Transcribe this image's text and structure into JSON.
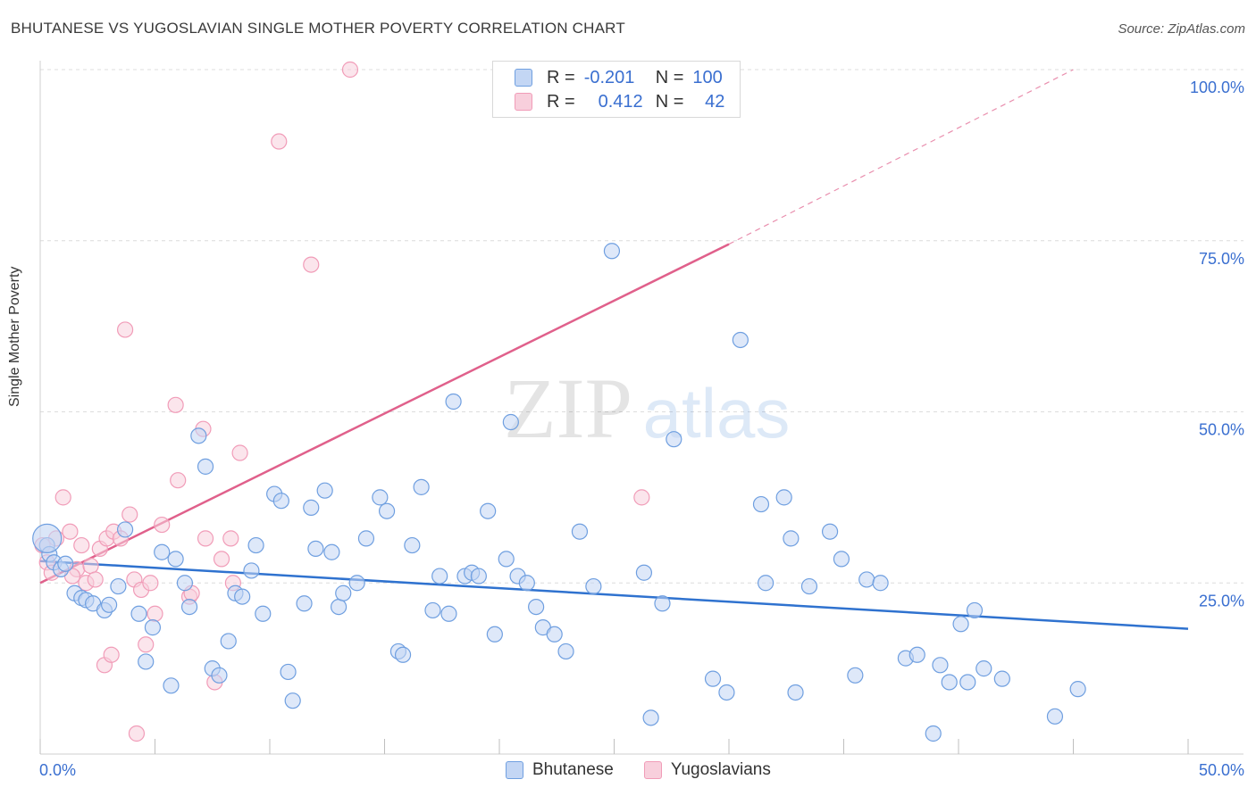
{
  "title": "BHUTANESE VS YUGOSLAVIAN SINGLE MOTHER POVERTY CORRELATION CHART",
  "source": "Source: ZipAtlas.com",
  "watermark": {
    "zip": "ZIP",
    "atlas": "atlas"
  },
  "legend": {
    "rows": [
      {
        "r_label": "R =",
        "r_value": "-0.201",
        "n_label": "N =",
        "n_value": "100"
      },
      {
        "r_label": "R =",
        "r_value": "0.412",
        "n_label": "N =",
        "n_value": "42"
      }
    ],
    "bottom": [
      "Bhutanese",
      "Yugoslavians"
    ]
  },
  "chart_data": {
    "type": "scatter",
    "title": "BHUTANESE VS YUGOSLAVIAN SINGLE MOTHER POVERTY CORRELATION CHART",
    "xlabel": "",
    "ylabel": "Single Mother Poverty",
    "xlim": [
      0,
      50
    ],
    "ylim": [
      0,
      100
    ],
    "x_tick_labels": [
      "0.0%",
      "50.0%"
    ],
    "y_tick_labels": [
      "25.0%",
      "50.0%",
      "75.0%",
      "100.0%"
    ],
    "y_ticks": [
      25,
      50,
      75,
      100
    ],
    "grid": true,
    "legend_placement": "top-center",
    "series": [
      {
        "name": "Bhutanese",
        "color": "#6f9fe0",
        "line_color": "#2f72cf",
        "trend": {
          "x": [
            0,
            50
          ],
          "y": [
            28.2,
            18.3
          ]
        },
        "points": [
          [
            0.3,
            30.5
          ],
          [
            0.4,
            29.2
          ],
          [
            0.6,
            28.0
          ],
          [
            0.9,
            27.0
          ],
          [
            1.1,
            27.8
          ],
          [
            1.5,
            23.5
          ],
          [
            1.8,
            22.8
          ],
          [
            2.0,
            22.5
          ],
          [
            2.3,
            22.0
          ],
          [
            2.8,
            21.0
          ],
          [
            3.0,
            21.8
          ],
          [
            3.4,
            24.5
          ],
          [
            3.7,
            32.8
          ],
          [
            4.3,
            20.5
          ],
          [
            4.6,
            13.5
          ],
          [
            4.9,
            18.5
          ],
          [
            5.3,
            29.5
          ],
          [
            5.7,
            10.0
          ],
          [
            5.9,
            28.5
          ],
          [
            6.3,
            25.0
          ],
          [
            6.5,
            21.5
          ],
          [
            6.9,
            46.5
          ],
          [
            7.2,
            42.0
          ],
          [
            7.5,
            12.5
          ],
          [
            7.8,
            11.5
          ],
          [
            8.2,
            16.5
          ],
          [
            8.5,
            23.5
          ],
          [
            8.8,
            23.0
          ],
          [
            9.2,
            26.8
          ],
          [
            9.4,
            30.5
          ],
          [
            9.7,
            20.5
          ],
          [
            10.2,
            38.0
          ],
          [
            10.5,
            37.0
          ],
          [
            10.8,
            12.0
          ],
          [
            11.0,
            7.8
          ],
          [
            11.5,
            22.0
          ],
          [
            11.8,
            36.0
          ],
          [
            12.0,
            30.0
          ],
          [
            12.4,
            38.5
          ],
          [
            12.7,
            29.5
          ],
          [
            13.0,
            21.5
          ],
          [
            13.2,
            23.5
          ],
          [
            13.8,
            25.0
          ],
          [
            14.2,
            31.5
          ],
          [
            14.8,
            37.5
          ],
          [
            15.1,
            35.5
          ],
          [
            15.6,
            15.0
          ],
          [
            15.8,
            14.5
          ],
          [
            16.2,
            30.5
          ],
          [
            16.6,
            39.0
          ],
          [
            17.1,
            21.0
          ],
          [
            17.4,
            26.0
          ],
          [
            17.8,
            20.5
          ],
          [
            18.0,
            51.5
          ],
          [
            18.5,
            26.0
          ],
          [
            18.8,
            26.5
          ],
          [
            19.1,
            26.0
          ],
          [
            19.5,
            35.5
          ],
          [
            19.8,
            17.5
          ],
          [
            20.3,
            28.5
          ],
          [
            20.5,
            48.5
          ],
          [
            20.8,
            26.0
          ],
          [
            21.2,
            25.0
          ],
          [
            21.6,
            21.5
          ],
          [
            21.9,
            18.5
          ],
          [
            22.4,
            17.5
          ],
          [
            22.9,
            15.0
          ],
          [
            23.5,
            32.5
          ],
          [
            24.1,
            24.5
          ],
          [
            24.9,
            73.5
          ],
          [
            26.3,
            26.5
          ],
          [
            26.6,
            5.3
          ],
          [
            27.1,
            22.0
          ],
          [
            27.6,
            46.0
          ],
          [
            29.3,
            11.0
          ],
          [
            29.9,
            9.0
          ],
          [
            30.5,
            60.5
          ],
          [
            31.4,
            36.5
          ],
          [
            31.6,
            25.0
          ],
          [
            32.4,
            37.5
          ],
          [
            32.7,
            31.5
          ],
          [
            32.9,
            9.0
          ],
          [
            33.5,
            24.5
          ],
          [
            34.4,
            32.5
          ],
          [
            34.9,
            28.5
          ],
          [
            35.5,
            11.5
          ],
          [
            36.0,
            25.5
          ],
          [
            36.6,
            25.0
          ],
          [
            37.7,
            14.0
          ],
          [
            38.2,
            14.5
          ],
          [
            38.9,
            3.0
          ],
          [
            39.2,
            13.0
          ],
          [
            39.6,
            10.5
          ],
          [
            40.1,
            19.0
          ],
          [
            40.4,
            10.5
          ],
          [
            40.7,
            21.0
          ],
          [
            41.1,
            12.5
          ],
          [
            41.9,
            11.0
          ],
          [
            44.2,
            5.5
          ],
          [
            45.2,
            9.5
          ]
        ]
      },
      {
        "name": "Yugoslavians",
        "color": "#f19cb8",
        "line_color": "#e0608b",
        "trend": {
          "x": [
            0,
            30
          ],
          "y": [
            25.0,
            74.5
          ]
        },
        "trend_extended": {
          "x": [
            30,
            45
          ],
          "y": [
            74.5,
            100
          ]
        },
        "points": [
          [
            0.1,
            30.5
          ],
          [
            0.3,
            28.0
          ],
          [
            0.5,
            26.5
          ],
          [
            0.7,
            31.5
          ],
          [
            1.0,
            37.5
          ],
          [
            1.3,
            32.5
          ],
          [
            1.6,
            27.0
          ],
          [
            1.8,
            30.5
          ],
          [
            2.0,
            25.0
          ],
          [
            2.2,
            27.5
          ],
          [
            2.4,
            25.5
          ],
          [
            2.6,
            30.0
          ],
          [
            2.8,
            13.0
          ],
          [
            2.9,
            31.5
          ],
          [
            3.1,
            14.5
          ],
          [
            3.2,
            32.5
          ],
          [
            3.5,
            31.5
          ],
          [
            3.7,
            62.0
          ],
          [
            3.9,
            35.0
          ],
          [
            4.1,
            25.5
          ],
          [
            4.2,
            3.0
          ],
          [
            4.4,
            24.0
          ],
          [
            4.6,
            16.0
          ],
          [
            4.8,
            25.0
          ],
          [
            5.0,
            20.5
          ],
          [
            5.3,
            33.5
          ],
          [
            5.9,
            51.0
          ],
          [
            6.0,
            40.0
          ],
          [
            6.5,
            23.0
          ],
          [
            6.6,
            23.5
          ],
          [
            7.1,
            47.5
          ],
          [
            7.2,
            31.5
          ],
          [
            7.6,
            10.5
          ],
          [
            7.9,
            28.5
          ],
          [
            8.3,
            31.5
          ],
          [
            8.4,
            25.0
          ],
          [
            8.7,
            44.0
          ],
          [
            10.4,
            89.5
          ],
          [
            11.8,
            71.5
          ],
          [
            13.5,
            100.0
          ],
          [
            26.2,
            37.5
          ],
          [
            1.4,
            26.0
          ]
        ]
      }
    ]
  }
}
